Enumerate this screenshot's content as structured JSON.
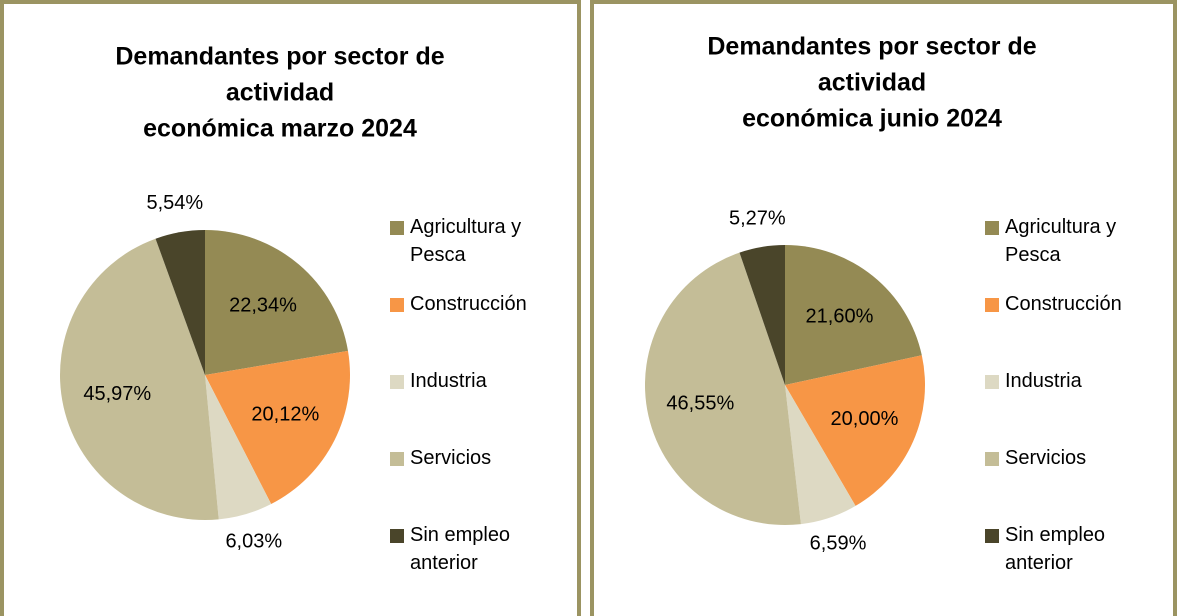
{
  "chart_data": [
    {
      "type": "pie",
      "title": [
        "Demandantes por sector de",
        "actividad",
        "económica marzo 2024"
      ],
      "categories": [
        "Agricultura y Pesca",
        "Construcción",
        "Industria",
        "Servicios",
        "Sin empleo anterior"
      ],
      "values": [
        22.34,
        20.12,
        6.03,
        45.97,
        5.54
      ],
      "value_labels": [
        "22,34%",
        "20,12%",
        "6,03%",
        "45,97%",
        "5,54%"
      ],
      "colors": [
        "#948a54",
        "#f79646",
        "#ddd9c3",
        "#c4bd97",
        "#4a452a"
      ],
      "legend": "right"
    },
    {
      "type": "pie",
      "title": [
        "Demandantes por sector de",
        "actividad",
        "económica  junio 2024"
      ],
      "categories": [
        "Agricultura y Pesca",
        "Construcción",
        "Industria",
        "Servicios",
        "Sin empleo anterior"
      ],
      "values": [
        21.6,
        20.0,
        6.59,
        46.55,
        5.27
      ],
      "value_labels": [
        "21,60%",
        "20,00%",
        "6,59%",
        "46,55%",
        "5,27%"
      ],
      "colors": [
        "#948a54",
        "#f79646",
        "#ddd9c3",
        "#c4bd97",
        "#4a452a"
      ],
      "legend": "right"
    }
  ]
}
